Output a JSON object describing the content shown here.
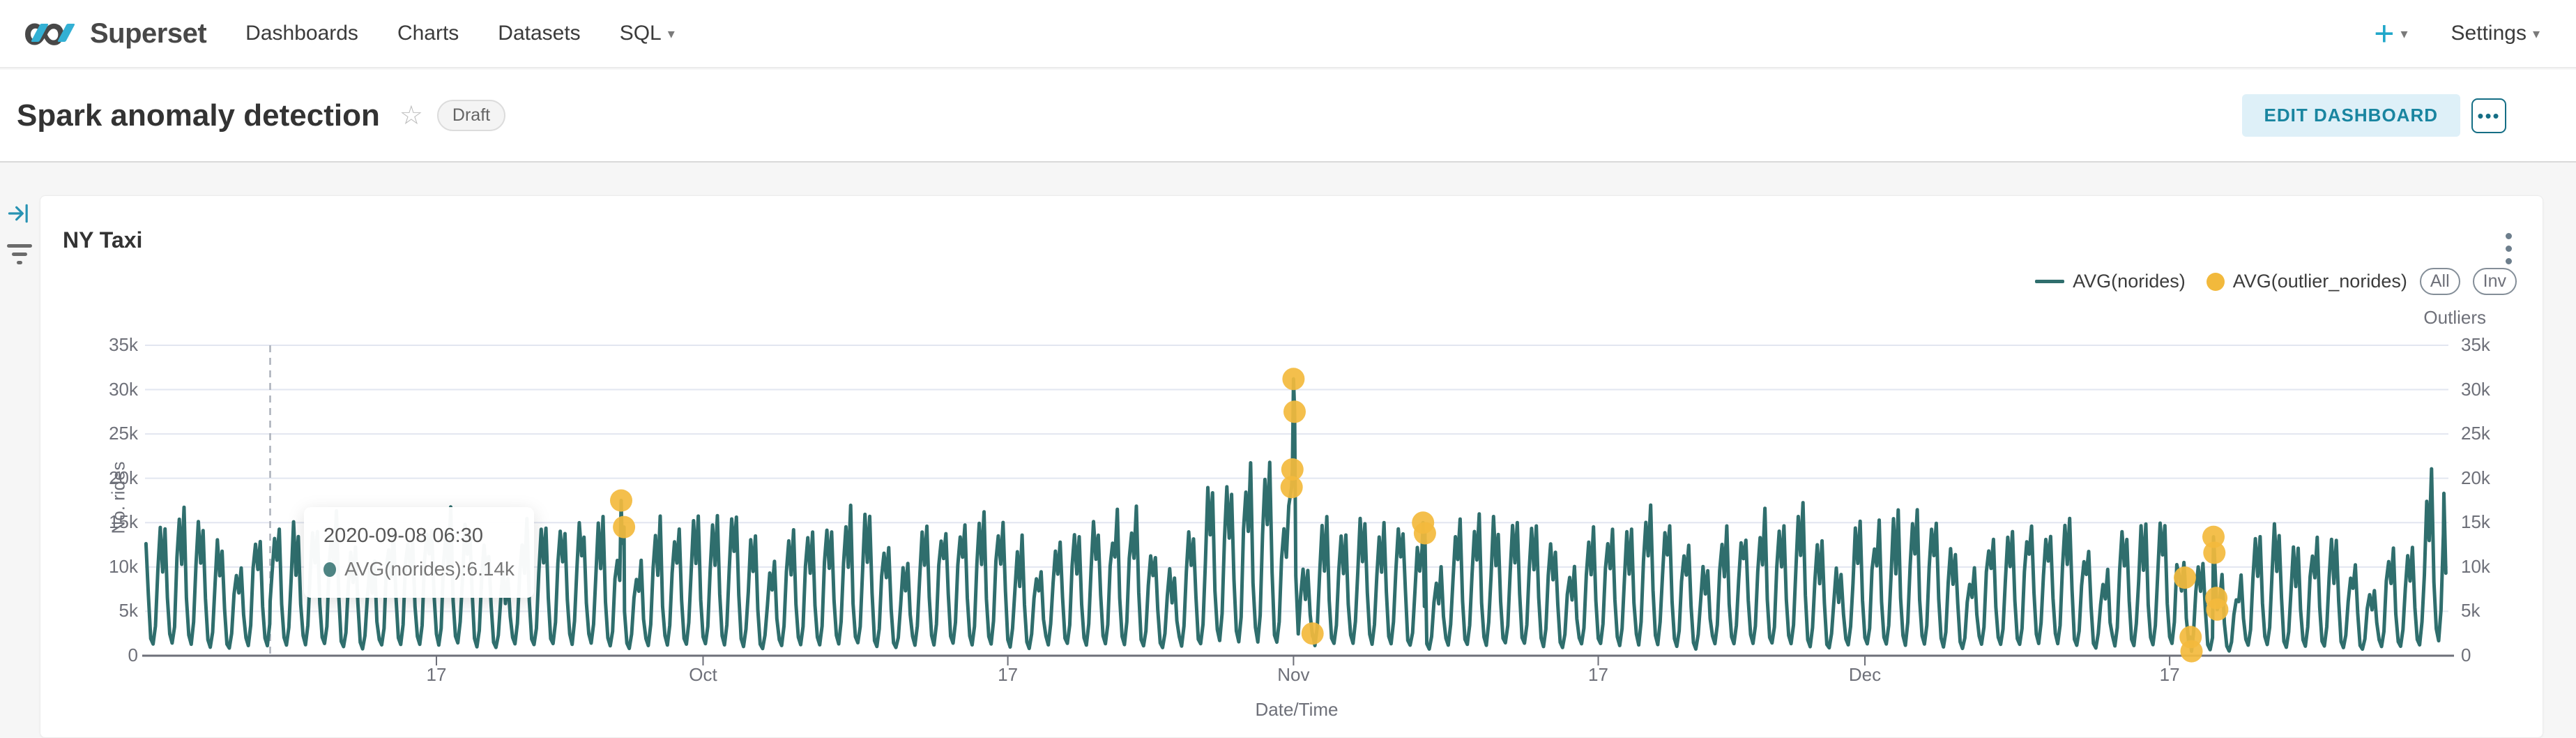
{
  "nav": {
    "brand": "Superset",
    "infinity_glyph": "∞",
    "links": [
      "Dashboards",
      "Charts",
      "Datasets",
      "SQL"
    ],
    "caret": "▾",
    "plus": "+",
    "settings": "Settings"
  },
  "header": {
    "title": "Spark anomaly detection",
    "star": "☆",
    "badge": "Draft",
    "edit_button": "EDIT DASHBOARD",
    "more_button": "•••"
  },
  "card": {
    "title": "NY Taxi"
  },
  "legend": {
    "items": [
      {
        "label": "AVG(norides)",
        "swatch": "line",
        "color": "#2F6E6D"
      },
      {
        "label": "AVG(outlier_norides)",
        "swatch": "circle",
        "color": "#F2B93C"
      }
    ],
    "buttons": [
      {
        "label": "All"
      },
      {
        "label": "Inv"
      }
    ]
  },
  "tooltip": {
    "title": "2020-09-08 06:30",
    "label": "AVG(norides)",
    "separator": ": ",
    "value": "6.14k",
    "marker_color": "#2F6E6D"
  },
  "chart_data": {
    "type": "line",
    "title": "NY Taxi",
    "xlabel": "Date/Time",
    "y_axis_left_label": "No. rides",
    "y_axis_right_label": "Outliers",
    "ylim_k": [
      0,
      35
    ],
    "ytick_labels": [
      "0",
      "5k",
      "10k",
      "15k",
      "20k",
      "25k",
      "30k",
      "35k"
    ],
    "ytick_values_k": [
      0,
      5,
      10,
      15,
      20,
      25,
      30,
      35
    ],
    "grid": true,
    "legend_position": "top-right",
    "x_axis": {
      "start_date": "2020-09-01",
      "span_days": 121.5,
      "ticks": [
        {
          "label": "17",
          "day": 16
        },
        {
          "label": "Oct",
          "day": 30
        },
        {
          "label": "17",
          "day": 46
        },
        {
          "label": "Nov",
          "day": 61
        },
        {
          "label": "17",
          "day": 77
        },
        {
          "label": "Dec",
          "day": 91
        },
        {
          "label": "17",
          "day": 107
        }
      ]
    },
    "series": [
      {
        "name": "AVG(norides)",
        "color": "#2F6E6D",
        "units": "thousands of rides, 3-hour samples",
        "daily_profile_k": [
          2.0,
          1.2,
          3.2,
          9.0,
          13.0,
          9.5,
          13.8,
          6.0
        ],
        "week_factors": [
          1.04,
          1.08,
          1.1,
          1.12,
          0.9,
          0.7,
          1.02
        ],
        "noise": 0.24,
        "episodes": [
          {
            "from": 56.5,
            "to": 60.8,
            "mult": 1.3
          },
          {
            "from": 107.4,
            "to": 110.6,
            "mult": 0.7
          },
          {
            "from": 113.0,
            "to": 120.0,
            "mult": 0.82
          },
          {
            "from": 120.4,
            "to": 121.6,
            "mult": 1.35
          }
        ],
        "mask_windows": [
          [
            60.82,
            61.2
          ],
          [
            109.28,
            109.55
          ]
        ],
        "key_points_t_v_k": [
          [
            7.27,
            6.14
          ],
          [
            25.7,
            17.5
          ],
          [
            25.85,
            14.5
          ],
          [
            60.9,
            19.0
          ],
          [
            60.94,
            21.0
          ],
          [
            61.0,
            31.2
          ],
          [
            61.06,
            27.5
          ],
          [
            61.12,
            9.0
          ],
          [
            62.0,
            2.5
          ],
          [
            67.8,
            15.0
          ],
          [
            67.9,
            13.8
          ],
          [
            107.8,
            8.8
          ],
          [
            108.1,
            2.1
          ],
          [
            108.15,
            0.5
          ],
          [
            109.3,
            13.4
          ],
          [
            109.35,
            11.6
          ],
          [
            109.45,
            6.5
          ],
          [
            109.5,
            5.2
          ],
          [
            121.4,
            18.3
          ],
          [
            121.5,
            9.3
          ]
        ]
      }
    ],
    "outliers": {
      "name": "AVG(outlier_norides)",
      "color": "#F3BA3D",
      "points_t_v_k": [
        [
          25.7,
          17.5
        ],
        [
          25.85,
          14.5
        ],
        [
          60.9,
          19.0
        ],
        [
          60.94,
          21.0
        ],
        [
          61.0,
          31.2
        ],
        [
          61.06,
          27.5
        ],
        [
          62.0,
          2.5
        ],
        [
          67.8,
          15.0
        ],
        [
          67.9,
          13.8
        ],
        [
          107.8,
          8.8
        ],
        [
          108.1,
          2.1
        ],
        [
          108.15,
          0.5
        ],
        [
          109.3,
          13.4
        ],
        [
          109.35,
          11.6
        ],
        [
          109.45,
          6.5
        ],
        [
          109.5,
          5.2
        ]
      ]
    },
    "hover": {
      "t": 7.27,
      "value_k": 6.14,
      "datetime": "2020-09-08 06:30"
    }
  }
}
